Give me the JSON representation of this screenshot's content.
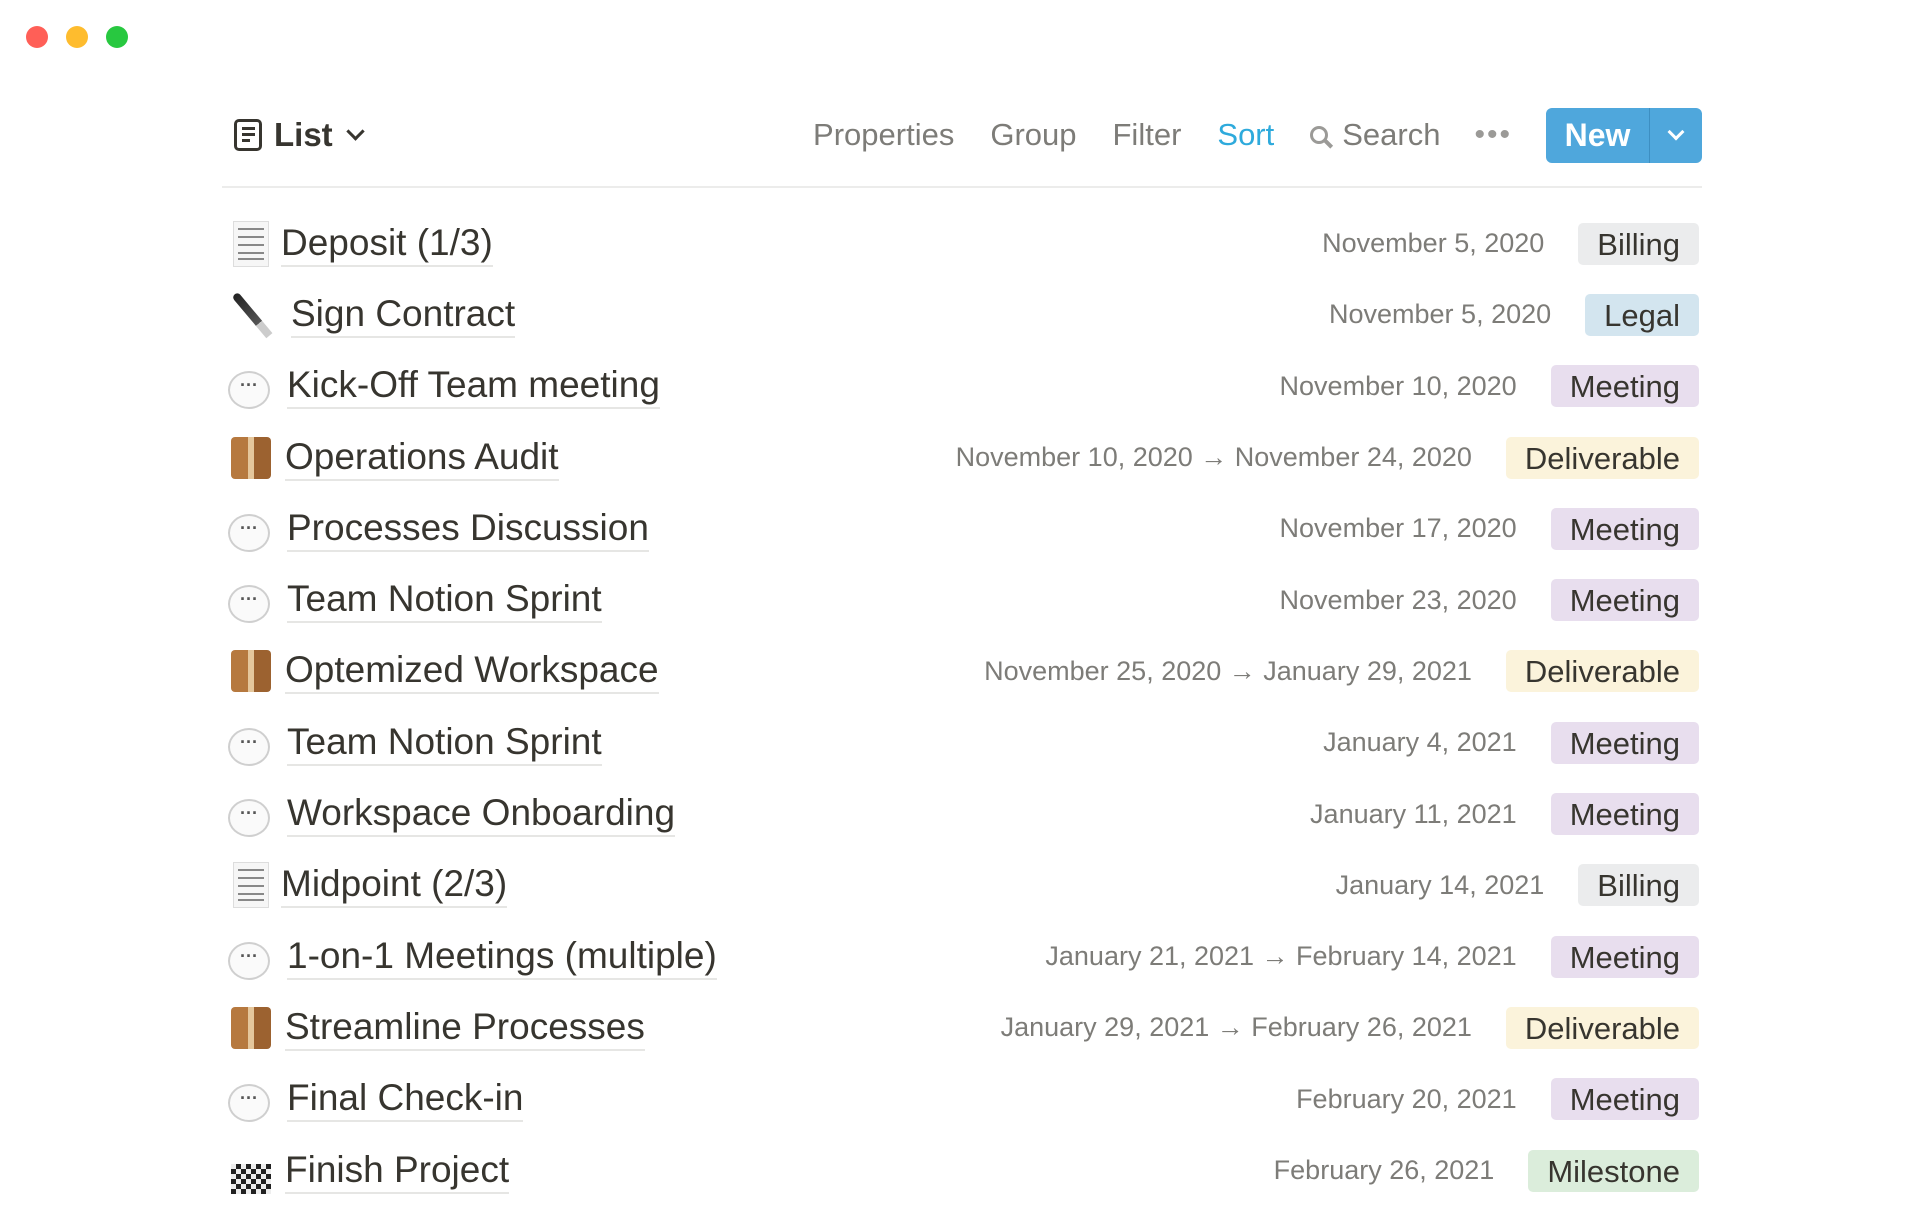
{
  "window": {
    "traffic_lights": [
      "#ff5f57",
      "#febc2e",
      "#28c840"
    ]
  },
  "toolbar": {
    "view_label": "List",
    "properties": "Properties",
    "group": "Group",
    "filter": "Filter",
    "sort": "Sort",
    "search": "Search",
    "more": "•••",
    "new_label": "New",
    "accent": "#2eaadc"
  },
  "tag_colors": {
    "Billing": "#ebeced",
    "Legal": "#d3e5ef",
    "Meeting": "#e8deee",
    "Deliverable": "#fbf3db",
    "Milestone": "#dbeddb"
  },
  "rows": [
    {
      "icon": "receipt",
      "title": "Deposit (1/3)",
      "date": "November 5, 2020",
      "tag": "Billing"
    },
    {
      "icon": "pen",
      "title": "Sign Contract",
      "date": "November 5, 2020",
      "tag": "Legal"
    },
    {
      "icon": "speech-bubble",
      "title": "Kick-Off Team meeting",
      "date": "November 10, 2020",
      "tag": "Meeting"
    },
    {
      "icon": "package",
      "title": "Operations Audit",
      "date": "November 10, 2020 → November 24, 2020",
      "tag": "Deliverable"
    },
    {
      "icon": "speech-bubble",
      "title": "Processes Discussion",
      "date": "November 17, 2020",
      "tag": "Meeting"
    },
    {
      "icon": "speech-bubble",
      "title": "Team Notion Sprint",
      "date": "November 23, 2020",
      "tag": "Meeting"
    },
    {
      "icon": "package",
      "title": "Optemized Workspace",
      "date": "November 25, 2020 → January 29, 2021",
      "tag": "Deliverable"
    },
    {
      "icon": "speech-bubble",
      "title": "Team Notion Sprint",
      "date": "January 4, 2021",
      "tag": "Meeting"
    },
    {
      "icon": "speech-bubble",
      "title": "Workspace Onboarding",
      "date": "January 11, 2021",
      "tag": "Meeting"
    },
    {
      "icon": "receipt",
      "title": "Midpoint (2/3)",
      "date": "January 14, 2021",
      "tag": "Billing"
    },
    {
      "icon": "speech-bubble",
      "title": "1-on-1 Meetings (multiple)",
      "date": "January 21, 2021 → February 14, 2021",
      "tag": "Meeting"
    },
    {
      "icon": "package",
      "title": "Streamline Processes",
      "date": "January 29, 2021 → February 26, 2021",
      "tag": "Deliverable"
    },
    {
      "icon": "speech-bubble",
      "title": "Final Check-in",
      "date": "February 20, 2021",
      "tag": "Meeting"
    },
    {
      "icon": "checkered-flag",
      "title": "Finish Project",
      "date": "February 26, 2021",
      "tag": "Milestone"
    }
  ]
}
